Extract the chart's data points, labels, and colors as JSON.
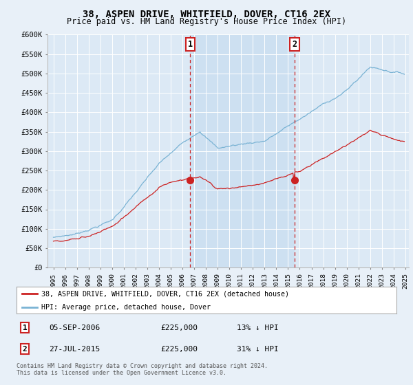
{
  "title": "38, ASPEN DRIVE, WHITFIELD, DOVER, CT16 2EX",
  "subtitle": "Price paid vs. HM Land Registry's House Price Index (HPI)",
  "ylim": [
    0,
    600000
  ],
  "yticks": [
    0,
    50000,
    100000,
    150000,
    200000,
    250000,
    300000,
    350000,
    400000,
    450000,
    500000,
    550000,
    600000
  ],
  "ytick_labels": [
    "£0",
    "£50K",
    "£100K",
    "£150K",
    "£200K",
    "£250K",
    "£300K",
    "£350K",
    "£400K",
    "£450K",
    "£500K",
    "£550K",
    "£600K"
  ],
  "sale1_year": 2006.67,
  "sale1_price": 225000,
  "sale2_year": 2015.56,
  "sale2_price": 225000,
  "hpi_color": "#7ab3d4",
  "price_color": "#cc2222",
  "vline_color": "#cc2222",
  "shade_color": "#c8ddf0",
  "legend_label_price": "38, ASPEN DRIVE, WHITFIELD, DOVER, CT16 2EX (detached house)",
  "legend_label_hpi": "HPI: Average price, detached house, Dover",
  "footnote1": "Contains HM Land Registry data © Crown copyright and database right 2024.",
  "footnote2": "This data is licensed under the Open Government Licence v3.0.",
  "table_row1": [
    "1",
    "05-SEP-2006",
    "£225,000",
    "13% ↓ HPI"
  ],
  "table_row2": [
    "2",
    "27-JUL-2015",
    "£225,000",
    "31% ↓ HPI"
  ],
  "background_color": "#e8f0f8",
  "plot_bg_color": "#dce9f5"
}
